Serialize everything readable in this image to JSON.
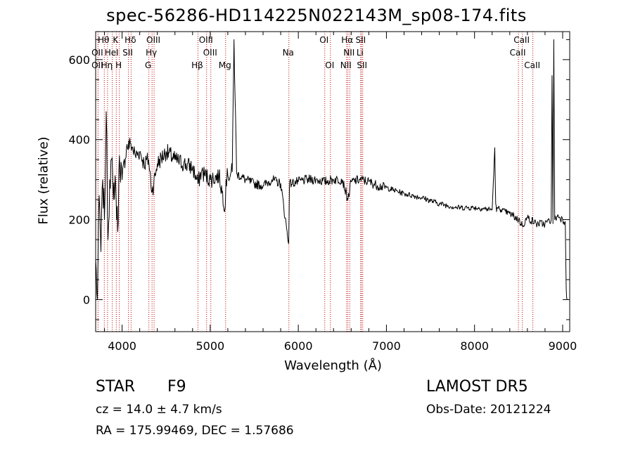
{
  "title": "spec-56286-HD114225N022143M_sp08-174.fits",
  "chart_data": {
    "type": "line",
    "title": "spec-56286-HD114225N022143M_sp08-174.fits",
    "xlabel": "Wavelength (Å)",
    "ylabel": "Flux (relative)",
    "xlim": [
      3700,
      9080
    ],
    "ylim": [
      -80,
      670
    ],
    "xticks": [
      4000,
      5000,
      6000,
      7000,
      8000,
      9000
    ],
    "yticks": [
      0,
      200,
      400,
      600
    ],
    "grid": false,
    "series": [
      {
        "x": [
          3700,
          3720,
          3740,
          3760,
          3780,
          3800,
          3820,
          3840,
          3860,
          3880,
          3900,
          3920,
          3950,
          3970,
          4000,
          4050,
          4100,
          4150,
          4200,
          4250,
          4300,
          4340,
          4400,
          4500,
          4600,
          4700,
          4800,
          4861,
          4900,
          5000,
          5100,
          5170,
          5180,
          5200,
          5250,
          5270,
          5300,
          5400,
          5500,
          5600,
          5700,
          5800,
          5890,
          5900,
          6000,
          6100,
          6200,
          6300,
          6400,
          6500,
          6563,
          6600,
          6700,
          6800,
          6900,
          7000,
          7200,
          7400,
          7600,
          7800,
          8000,
          8200,
          8230,
          8240,
          8250,
          8260,
          8300,
          8400,
          8500,
          8542,
          8600,
          8700,
          8800,
          8870,
          8880,
          8890,
          8900,
          8910,
          8950,
          9000,
          9030,
          9040,
          9050
        ],
        "y": [
          100,
          0,
          260,
          120,
          300,
          200,
          470,
          150,
          300,
          350,
          250,
          310,
          170,
          360,
          300,
          380,
          390,
          360,
          370,
          340,
          350,
          270,
          340,
          370,
          350,
          340,
          330,
          290,
          320,
          300,
          310,
          230,
          300,
          310,
          320,
          650,
          315,
          300,
          290,
          285,
          300,
          290,
          140,
          290,
          295,
          300,
          300,
          295,
          300,
          300,
          250,
          295,
          300,
          295,
          285,
          280,
          265,
          255,
          240,
          230,
          230,
          225,
          380,
          240,
          220,
          230,
          225,
          215,
          200,
          185,
          205,
          190,
          190,
          200,
          560,
          190,
          650,
          200,
          210,
          200,
          195,
          30,
          0
        ]
      }
    ]
  },
  "line_markers": [
    {
      "label": "Hθ",
      "wave": 3798,
      "row": 0
    },
    {
      "label": "K",
      "wave": 3934,
      "row": 0
    },
    {
      "label": "Hδ",
      "wave": 4102,
      "row": 0
    },
    {
      "label": "OIII",
      "wave": 4363,
      "row": 0
    },
    {
      "label": "OIII",
      "wave": 4959,
      "row": 0
    },
    {
      "label": "OI",
      "wave": 6300,
      "row": 0
    },
    {
      "label": "Hα",
      "wave": 6563,
      "row": 0
    },
    {
      "label": "SII",
      "wave": 6716,
      "row": 0
    },
    {
      "label": "CaII",
      "wave": 8542,
      "row": 0
    },
    {
      "label": "OII",
      "wave": 3727,
      "row": 1
    },
    {
      "label": "HeI",
      "wave": 3889,
      "row": 1
    },
    {
      "label": "SII",
      "wave": 4072,
      "row": 1
    },
    {
      "label": "Hγ",
      "wave": 4340,
      "row": 1
    },
    {
      "label": "OIII",
      "wave": 5007,
      "row": 1
    },
    {
      "label": "Na",
      "wave": 5893,
      "row": 1
    },
    {
      "label": "NII",
      "wave": 6584,
      "row": 1
    },
    {
      "label": "Li",
      "wave": 6708,
      "row": 1
    },
    {
      "label": "CaII",
      "wave": 8498,
      "row": 1
    },
    {
      "label": "OII",
      "wave": 3727,
      "row": 2
    },
    {
      "label": "Hη",
      "wave": 3835,
      "row": 2
    },
    {
      "label": "H",
      "wave": 3969,
      "row": 2
    },
    {
      "label": "G",
      "wave": 4304,
      "row": 2
    },
    {
      "label": "Hβ",
      "wave": 4861,
      "row": 2
    },
    {
      "label": "Mg",
      "wave": 5175,
      "row": 2
    },
    {
      "label": "OI",
      "wave": 6364,
      "row": 2
    },
    {
      "label": "NII",
      "wave": 6548,
      "row": 2
    },
    {
      "label": "SII",
      "wave": 6731,
      "row": 2
    },
    {
      "label": "CaII",
      "wave": 8662,
      "row": 2
    }
  ],
  "info": {
    "object_type": "STAR",
    "subclass": "F9",
    "survey": "LAMOST DR5",
    "redshift": "cz = 14.0 ± 4.7 km/s",
    "obs_date": "Obs-Date: 20121224",
    "coords": "RA = 175.99469, DEC =    1.57686"
  },
  "colors": {
    "spectrum": "#000000",
    "marker": "#c00000",
    "axes": "#000000"
  }
}
